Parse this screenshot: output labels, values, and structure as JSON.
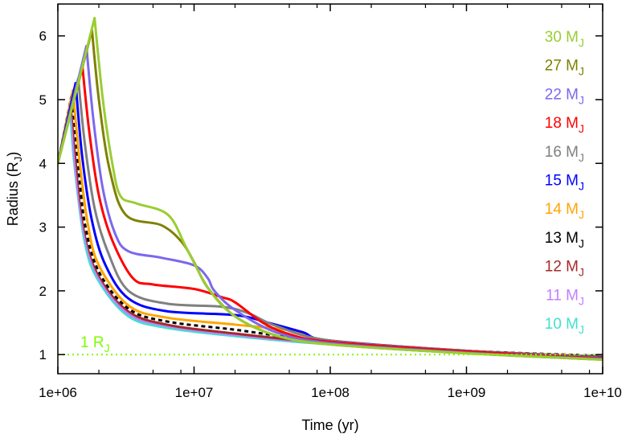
{
  "chart_data": {
    "type": "line",
    "xlabel": "Time (yr)",
    "ylabel": "Radius (R_J)",
    "ylabel_main": "Radius (R",
    "ylabel_sub": "J",
    "ylabel_close": ")",
    "xscale": "log",
    "xlim": [
      1000000.0,
      10000000000.0
    ],
    "ylim": [
      0.7,
      6.5
    ],
    "xticks": [
      "1e+06",
      "1e+07",
      "1e+08",
      "1e+09",
      "1e+10"
    ],
    "yticks": [
      "1",
      "2",
      "3",
      "4",
      "5",
      "6"
    ],
    "grid": false,
    "legend_placement": "right",
    "reference_line": {
      "value": 1,
      "label_main": "1 R",
      "label_sub": "J",
      "color": "#7cfc00"
    },
    "series": [
      {
        "name": "10 M_J",
        "label_main": "10 M",
        "label_sub": "J",
        "color": "#40e0d0",
        "points": [
          [
            1000000.0,
            4.0
          ],
          [
            1230000.0,
            4.9
          ],
          [
            1320000.0,
            4.0
          ],
          [
            1580000.0,
            2.75
          ],
          [
            2000000.0,
            2.15
          ],
          [
            3300000.0,
            1.6
          ],
          [
            6300000.0,
            1.42
          ],
          [
            20000000.0,
            1.29
          ],
          [
            100000000.0,
            1.16
          ],
          [
            1000000000.0,
            1.04
          ],
          [
            10000000000.0,
            0.97
          ]
        ]
      },
      {
        "name": "11 M_J",
        "label_main": "11 M",
        "label_sub": "J",
        "color": "#c080ff",
        "points": [
          [
            1000000.0,
            4.0
          ],
          [
            1245000.0,
            5.0
          ],
          [
            1350000.0,
            3.9
          ],
          [
            1580000.0,
            2.85
          ],
          [
            2000000.0,
            2.2
          ],
          [
            3300000.0,
            1.64
          ],
          [
            6300000.0,
            1.45
          ],
          [
            20000000.0,
            1.31
          ],
          [
            100000000.0,
            1.17
          ],
          [
            1000000000.0,
            1.05
          ],
          [
            10000000000.0,
            0.97
          ]
        ]
      },
      {
        "name": "12 M_J",
        "label_main": "12 M",
        "label_sub": "J",
        "color": "#a52a2a",
        "points": [
          [
            1000000.0,
            4.0
          ],
          [
            1260000.0,
            5.05
          ],
          [
            1380000.0,
            3.95
          ],
          [
            1580000.0,
            2.95
          ],
          [
            2000000.0,
            2.25
          ],
          [
            3300000.0,
            1.68
          ],
          [
            6300000.0,
            1.47
          ],
          [
            20000000.0,
            1.33
          ],
          [
            100000000.0,
            1.18
          ],
          [
            1000000000.0,
            1.05
          ],
          [
            10000000000.0,
            0.97
          ]
        ]
      },
      {
        "name": "13 M_J",
        "label_main": "13 M",
        "label_sub": "J",
        "color": "#000000",
        "dashed": true,
        "points": [
          [
            1000000.0,
            4.0
          ],
          [
            1270000.0,
            5.1
          ],
          [
            1410000.0,
            4.0
          ],
          [
            1580000.0,
            3.05
          ],
          [
            2000000.0,
            2.3
          ],
          [
            3300000.0,
            1.72
          ],
          [
            6300000.0,
            1.52
          ],
          [
            20000000.0,
            1.39
          ],
          [
            40000000.0,
            1.3
          ],
          [
            100000000.0,
            1.2
          ],
          [
            1000000000.0,
            1.06
          ],
          [
            10000000000.0,
            0.98
          ]
        ]
      },
      {
        "name": "14 M_J",
        "label_main": "14 M",
        "label_sub": "J",
        "color": "#ffa500",
        "points": [
          [
            1000000.0,
            4.0
          ],
          [
            1290000.0,
            5.15
          ],
          [
            1450000.0,
            4.0
          ],
          [
            1660000.0,
            3.05
          ],
          [
            2000000.0,
            2.4
          ],
          [
            3300000.0,
            1.77
          ],
          [
            6300000.0,
            1.58
          ],
          [
            20000000.0,
            1.47
          ],
          [
            50000000.0,
            1.38
          ],
          [
            100000000.0,
            1.22
          ],
          [
            1000000000.0,
            1.06
          ],
          [
            10000000000.0,
            0.97
          ]
        ]
      },
      {
        "name": "15 M_J",
        "label_main": "15 M",
        "label_sub": "J",
        "color": "#0000ff",
        "points": [
          [
            1000000.0,
            4.0
          ],
          [
            1350000.0,
            5.26
          ],
          [
            1510000.0,
            4.1
          ],
          [
            1780000.0,
            3.1
          ],
          [
            2240000.0,
            2.4
          ],
          [
            3300000.0,
            1.88
          ],
          [
            6300000.0,
            1.68
          ],
          [
            20000000.0,
            1.62
          ],
          [
            35000000.0,
            1.5
          ],
          [
            63000000.0,
            1.35
          ],
          [
            100000000.0,
            1.22
          ],
          [
            1000000000.0,
            1.06
          ],
          [
            10000000000.0,
            0.96
          ]
        ]
      },
      {
        "name": "16 M_J",
        "label_main": "16 M",
        "label_sub": "J",
        "color": "#808080",
        "points": [
          [
            1000000.0,
            4.0
          ],
          [
            1410000.0,
            5.33
          ],
          [
            1580000.0,
            4.3
          ],
          [
            1860000.0,
            3.3
          ],
          [
            2340000.0,
            2.6
          ],
          [
            3300000.0,
            2.0
          ],
          [
            6300000.0,
            1.8
          ],
          [
            16000000.0,
            1.75
          ],
          [
            25000000.0,
            1.65
          ],
          [
            40000000.0,
            1.45
          ],
          [
            100000000.0,
            1.22
          ],
          [
            1000000000.0,
            1.06
          ],
          [
            10000000000.0,
            0.95
          ]
        ]
      },
      {
        "name": "18 M_J",
        "label_main": "18 M",
        "label_sub": "J",
        "color": "#ff0000",
        "points": [
          [
            1000000.0,
            4.0
          ],
          [
            1510000.0,
            5.55
          ],
          [
            1700000.0,
            4.5
          ],
          [
            2000000.0,
            3.5
          ],
          [
            2500000.0,
            2.8
          ],
          [
            3550000.0,
            2.2
          ],
          [
            5000000.0,
            2.1
          ],
          [
            10000000.0,
            2.03
          ],
          [
            16000000.0,
            1.9
          ],
          [
            20000000.0,
            1.82
          ],
          [
            32000000.0,
            1.5
          ],
          [
            50000000.0,
            1.32
          ],
          [
            100000000.0,
            1.2
          ],
          [
            1000000000.0,
            1.05
          ],
          [
            10000000000.0,
            0.94
          ]
        ]
      },
      {
        "name": "22 M_J",
        "label_main": "22 M",
        "label_sub": "J",
        "color": "#7b68ee",
        "points": [
          [
            1000000.0,
            4.0
          ],
          [
            1620000.0,
            5.84
          ],
          [
            1820000.0,
            4.7
          ],
          [
            2140000.0,
            3.6
          ],
          [
            2630000.0,
            2.9
          ],
          [
            3300000.0,
            2.62
          ],
          [
            5750000.0,
            2.52
          ],
          [
            10000000.0,
            2.4
          ],
          [
            12600000.0,
            2.2
          ],
          [
            14100000.0,
            2.0
          ],
          [
            20000000.0,
            1.7
          ],
          [
            40000000.0,
            1.35
          ],
          [
            100000000.0,
            1.18
          ],
          [
            1000000000.0,
            1.03
          ],
          [
            10000000000.0,
            0.93
          ]
        ]
      },
      {
        "name": "27 M_J",
        "label_main": "27 M",
        "label_sub": "J",
        "color": "#808000",
        "points": [
          [
            1000000.0,
            4.0
          ],
          [
            1780000.0,
            6.09
          ],
          [
            2000000.0,
            5.0
          ],
          [
            2400000.0,
            3.9
          ],
          [
            3160000.0,
            3.19
          ],
          [
            5750000.0,
            3.03
          ],
          [
            8100000.0,
            2.77
          ],
          [
            10000000.0,
            2.45
          ],
          [
            12600000.0,
            2.05
          ],
          [
            20000000.0,
            1.6
          ],
          [
            40000000.0,
            1.3
          ],
          [
            100000000.0,
            1.16
          ],
          [
            1000000000.0,
            1.02
          ],
          [
            10000000000.0,
            0.92
          ]
        ]
      },
      {
        "name": "30 M_J",
        "label_main": "30 M",
        "label_sub": "J",
        "color": "#9acd32",
        "points": [
          [
            1000000.0,
            4.0
          ],
          [
            1860000.0,
            6.28
          ],
          [
            2140000.0,
            5.0
          ],
          [
            2510000.0,
            4.0
          ],
          [
            2880000.0,
            3.49
          ],
          [
            3800000.0,
            3.37
          ],
          [
            6460000.0,
            3.19
          ],
          [
            8900000.0,
            2.65
          ],
          [
            12900000.0,
            2.02
          ],
          [
            20000000.0,
            1.6
          ],
          [
            40000000.0,
            1.3
          ],
          [
            100000000.0,
            1.16
          ],
          [
            1000000000.0,
            1.02
          ],
          [
            10000000000.0,
            0.92
          ]
        ]
      }
    ]
  }
}
